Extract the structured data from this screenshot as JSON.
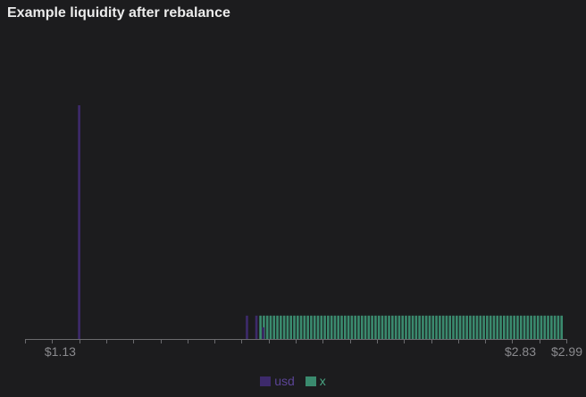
{
  "chart_data": {
    "type": "bar",
    "title": "Example liquidity after rebalance",
    "xlabel": "",
    "ylabel": "",
    "x_range": [
      1.0,
      3.0
    ],
    "ylim": [
      0,
      100
    ],
    "x_tick_labels": [
      {
        "value": 1.13,
        "label": "$1.13"
      },
      {
        "value": 2.83,
        "label": "$2.83"
      },
      {
        "value": 2.99,
        "label": "$2.99"
      }
    ],
    "bar_width": 0.0087,
    "series": [
      {
        "name": "usd",
        "color": "#3d2a6b",
        "points": [
          {
            "x": 1.2,
            "y": 100
          },
          {
            "x": 1.82,
            "y": 10
          },
          {
            "x": 1.855,
            "y": 10
          },
          {
            "x": 1.88,
            "y": 5
          }
        ]
      },
      {
        "name": "x",
        "color": "#3a8a6e",
        "x_start": 1.87,
        "x_step": 0.0125,
        "count": 90,
        "y": 10
      }
    ],
    "legend_position": "bottom-center",
    "grid": false
  }
}
